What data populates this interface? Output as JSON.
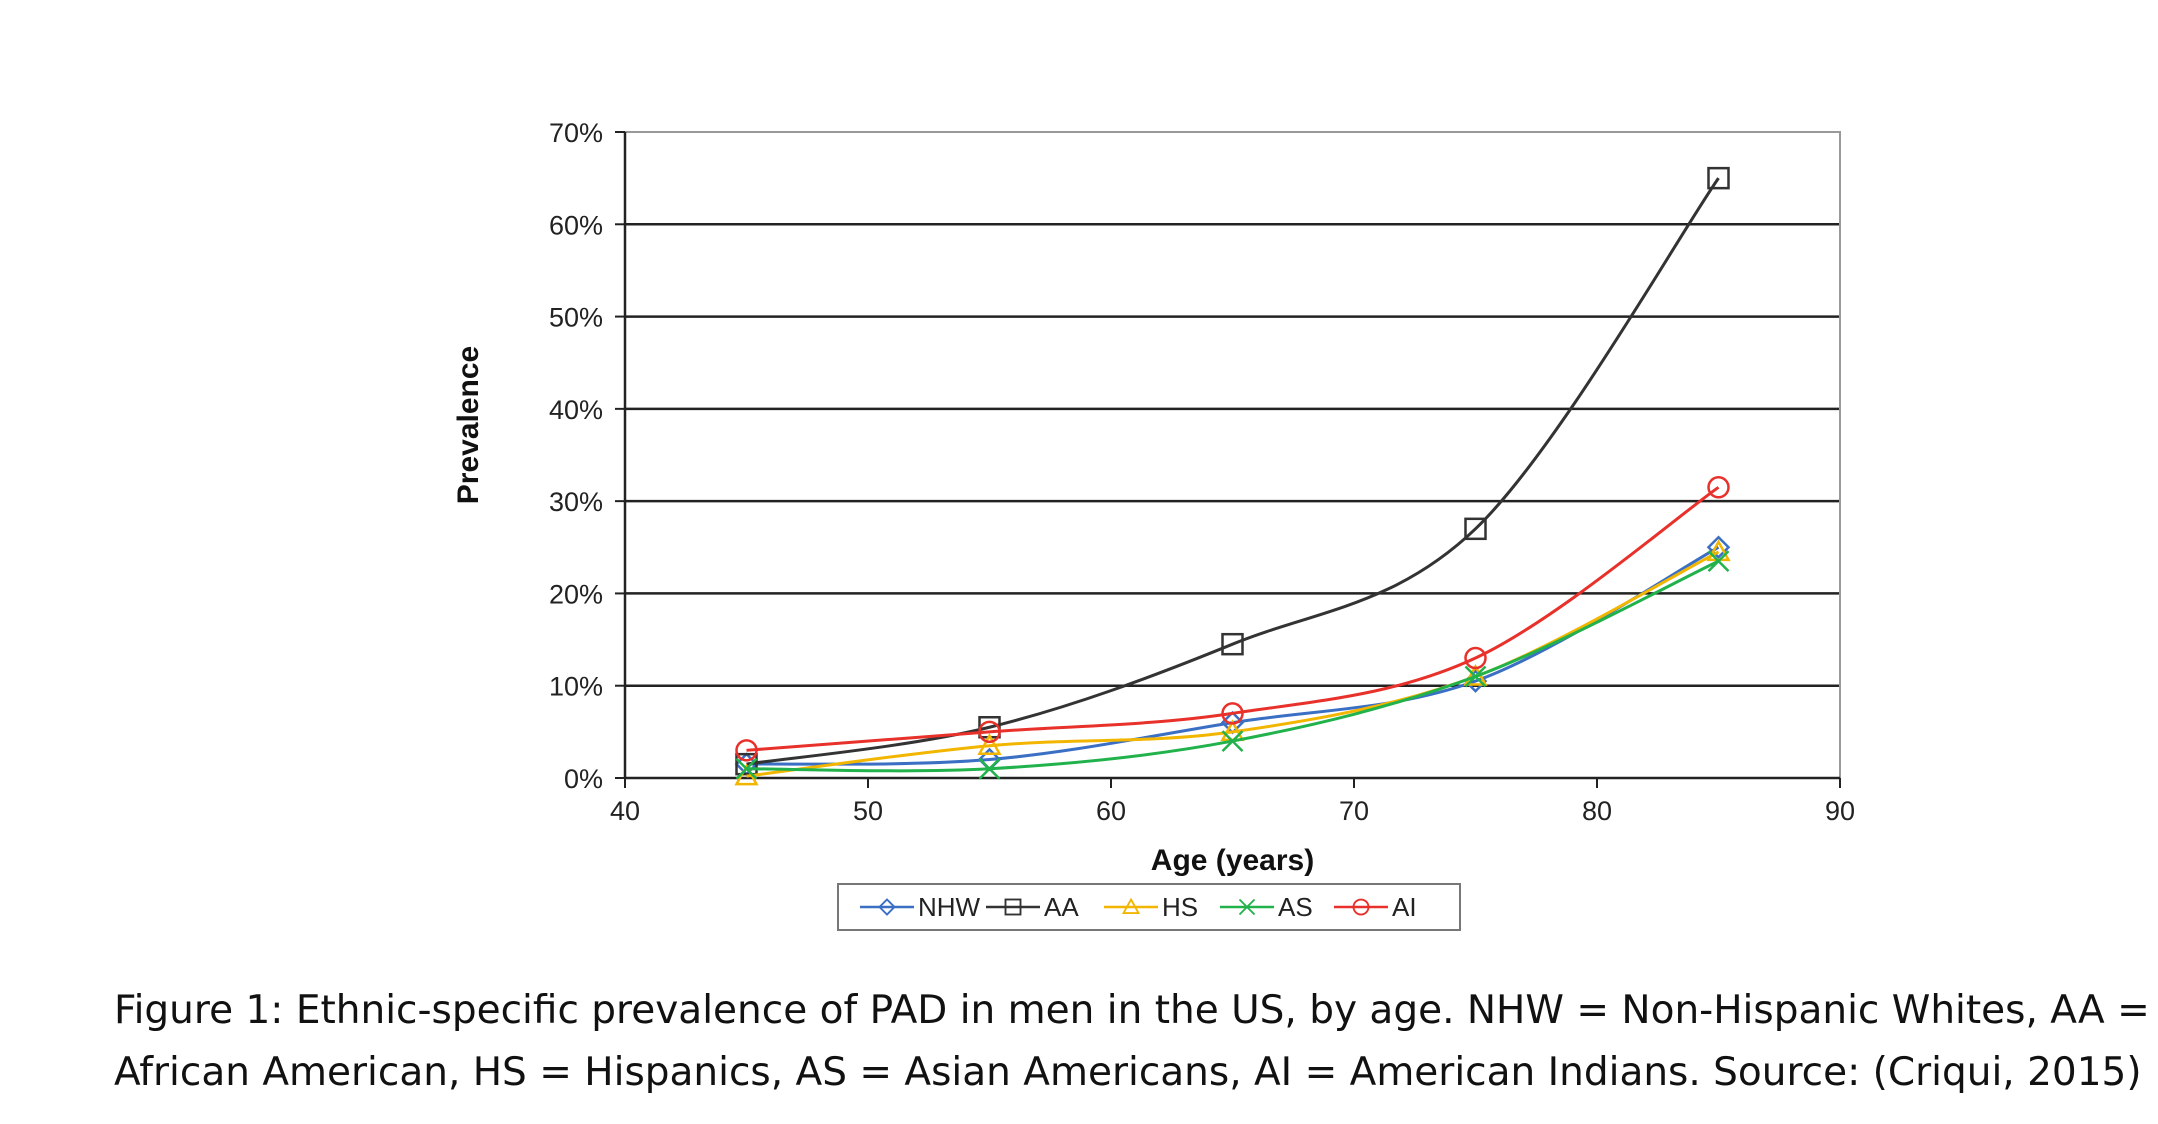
{
  "chart_data": {
    "type": "line",
    "xlabel": "Age (years)",
    "ylabel": "Prevalence",
    "xlim": [
      40,
      90
    ],
    "ylim": [
      0,
      70
    ],
    "x_ticks": [
      "40",
      "50",
      "60",
      "70",
      "80",
      "90"
    ],
    "y_ticks": [
      "0%",
      "10%",
      "20%",
      "30%",
      "40%",
      "50%",
      "60%",
      "70%"
    ],
    "grid": "horizontal",
    "legend_position": "bottom",
    "x": [
      45,
      55,
      65,
      75,
      85
    ],
    "series": [
      {
        "name": "NHW",
        "values": [
          1.5,
          2,
          6,
          10.5,
          25
        ],
        "color": "#3a6fc4",
        "marker": "diamond"
      },
      {
        "name": "AA",
        "values": [
          1.5,
          5.5,
          14.5,
          27,
          65
        ],
        "color": "#333333",
        "marker": "square"
      },
      {
        "name": "HS",
        "values": [
          0.2,
          3.5,
          5,
          11,
          24.5
        ],
        "color": "#f2b600",
        "marker": "triangle"
      },
      {
        "name": "AS",
        "values": [
          1,
          1,
          4,
          11,
          23.5
        ],
        "color": "#22b24c",
        "marker": "x"
      },
      {
        "name": "AI",
        "values": [
          3,
          5,
          7,
          13,
          31.5
        ],
        "color": "#e8312a",
        "marker": "circle"
      }
    ]
  },
  "caption": {
    "line1": "Figure 1: Ethnic-specific prevalence of PAD in men in the US, by age. NHW = Non-Hispanic Whites, AA =",
    "line2": "African American, HS = Hispanics, AS = Asian Americans, AI = American Indians. Source: (Criqui, 2015)"
  }
}
